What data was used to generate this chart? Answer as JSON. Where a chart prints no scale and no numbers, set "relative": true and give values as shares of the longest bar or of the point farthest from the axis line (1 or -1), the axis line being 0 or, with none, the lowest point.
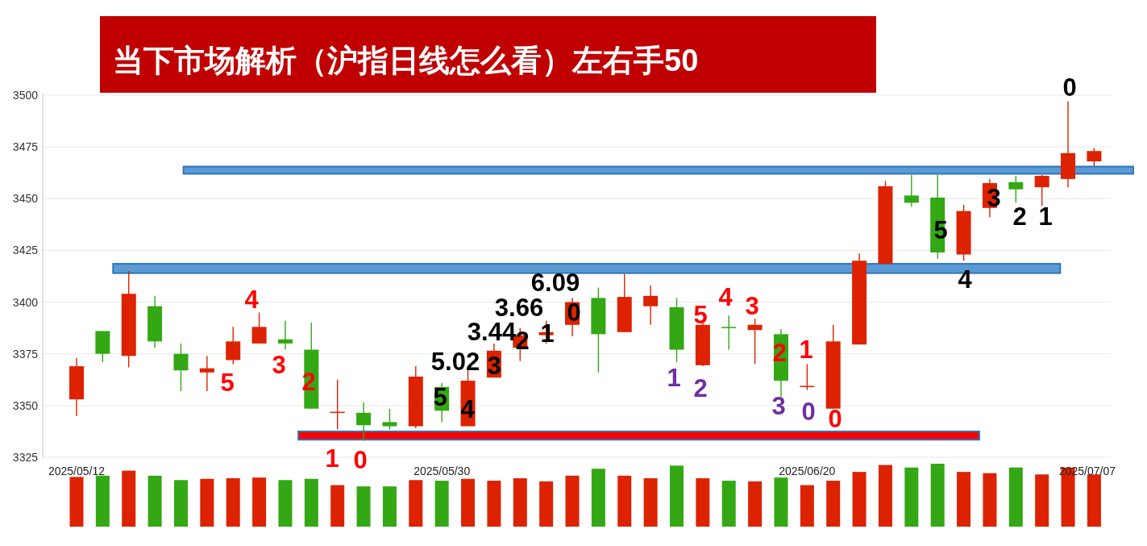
{
  "chart_data": [
    {
      "type": "candlestick",
      "title": "当下市场解析（沪指日线怎么看）左右手50",
      "categories": [
        "2025/05/12",
        null,
        null,
        null,
        null,
        null,
        null,
        null,
        null,
        null,
        null,
        null,
        null,
        null,
        "2025/05/30",
        null,
        null,
        null,
        null,
        null,
        null,
        null,
        null,
        null,
        null,
        null,
        null,
        null,
        "2025/06/20",
        null,
        null,
        null,
        null,
        null,
        null,
        null,
        null,
        null,
        null,
        "2025/07/07"
      ],
      "ohlc": [
        [
          3353,
          3373,
          3345,
          3369
        ],
        [
          3386,
          3386,
          3371,
          3375
        ],
        [
          3374,
          3415,
          3368.5,
          3404
        ],
        [
          3398,
          3403,
          3378,
          3381
        ],
        [
          3375,
          3380,
          3357,
          3367
        ],
        [
          3366,
          3374,
          3357,
          3368
        ],
        [
          3372,
          3388,
          3370,
          3381
        ],
        [
          3380,
          3395,
          3380,
          3388
        ],
        [
          3382,
          3391,
          3377,
          3380
        ],
        [
          3377,
          3390,
          3348.5,
          3348.5
        ],
        [
          3346.5,
          3362.5,
          3338.5,
          3347
        ],
        [
          3346.5,
          3351.5,
          3333,
          3340.5
        ],
        [
          3342,
          3348.5,
          3338.5,
          3340
        ],
        [
          3340,
          3369,
          3339,
          3364
        ],
        [
          3359,
          3361,
          3342,
          3347.5
        ],
        [
          3340,
          3367,
          3340,
          3362
        ],
        [
          3363.5,
          3380,
          3363.5,
          3376.5
        ],
        [
          3378,
          3387.5,
          3371.5,
          3384
        ],
        [
          3384,
          3391,
          3380,
          3385.5
        ],
        [
          3389,
          3402,
          3383.5,
          3400
        ],
        [
          3402,
          3407,
          3366,
          3384.5
        ],
        [
          3385.5,
          3413.5,
          3385.5,
          3402.5
        ],
        [
          3398,
          3408,
          3389,
          3403
        ],
        [
          3397.5,
          3402,
          3371,
          3377
        ],
        [
          3369.5,
          3390,
          3369,
          3389
        ],
        [
          3388,
          3393.5,
          3377,
          3387.5
        ],
        [
          3386.5,
          3392,
          3370,
          3389
        ],
        [
          3384.5,
          3387,
          3354,
          3362
        ],
        [
          3359,
          3370,
          3357.5,
          3359.5
        ],
        [
          3348.5,
          3389,
          3348.5,
          3381
        ],
        [
          3379.5,
          3423.5,
          3379.5,
          3420
        ],
        [
          3418.5,
          3458.5,
          3418.5,
          3456
        ],
        [
          3451.5,
          3461.5,
          3446,
          3448
        ],
        [
          3450.5,
          3461.5,
          3421,
          3424
        ],
        [
          3423,
          3447,
          3420,
          3444
        ],
        [
          3445.5,
          3459.5,
          3441,
          3457.5
        ],
        [
          3458,
          3461,
          3448,
          3454.5
        ],
        [
          3455.5,
          3461.5,
          3446.5,
          3461
        ],
        [
          3459.5,
          3497,
          3455.5,
          3472
        ],
        [
          3468,
          3474.5,
          3465.5,
          3473
        ]
      ],
      "colors": [
        "#dd2200",
        "#33a814",
        "#dd2200",
        "#33a814",
        "#33a814",
        "#dd2200",
        "#dd2200",
        "#dd2200",
        "#33a814",
        "#33a814",
        "#dd2200",
        "#33a814",
        "#33a814",
        "#dd2200",
        "#33a814",
        "#dd2200",
        "#dd2200",
        "#dd2200",
        "#dd2200",
        "#dd2200",
        "#33a814",
        "#dd2200",
        "#dd2200",
        "#33a814",
        "#dd2200",
        "#33a814",
        "#dd2200",
        "#33a814",
        "#dd2200",
        "#dd2200",
        "#dd2200",
        "#dd2200",
        "#33a814",
        "#33a814",
        "#dd2200",
        "#dd2200",
        "#33a814",
        "#dd2200",
        "#dd2200",
        "#dd2200"
      ],
      "ylim": [
        3325,
        3500
      ],
      "yticks": [
        3325,
        3350,
        3375,
        3400,
        3425,
        3450,
        3475,
        3500
      ],
      "grid": "y",
      "bands": [
        {
          "axis": "y",
          "from": 3462,
          "to": 3465.5,
          "color": "#5b9bd5"
        },
        {
          "axis": "y",
          "from": 3414,
          "to": 3418.5,
          "color": "#5b9bd5"
        },
        {
          "axis": "y",
          "from": 3333.5,
          "to": 3337.5,
          "color": "#ff0000"
        }
      ],
      "annotations": [
        "4",
        "3",
        "5",
        "2",
        "1",
        "0",
        "5",
        "4",
        "5.02",
        "3",
        "3.44",
        "2",
        "3.66",
        "1",
        "6.09",
        "0",
        "1",
        "2",
        "5",
        "4",
        "3",
        "2",
        "3",
        "1",
        "0",
        "0",
        "5",
        "4",
        "3",
        "2",
        "1",
        "0"
      ]
    },
    {
      "type": "bar",
      "relative": true,
      "categories": [
        null,
        null,
        null,
        null,
        null,
        null,
        null,
        null,
        null,
        null,
        null,
        null,
        null,
        null,
        null,
        null,
        null,
        null,
        null,
        null,
        null,
        null,
        null,
        null,
        null,
        null,
        null,
        null,
        null,
        null,
        null,
        null,
        null,
        null,
        null,
        null,
        null,
        null,
        null,
        null
      ],
      "values": [
        0.79,
        0.81,
        0.89,
        0.81,
        0.74,
        0.76,
        0.77,
        0.78,
        0.74,
        0.76,
        0.66,
        0.64,
        0.64,
        0.74,
        0.73,
        0.76,
        0.73,
        0.77,
        0.72,
        0.81,
        0.92,
        0.81,
        0.77,
        0.97,
        0.77,
        0.73,
        0.72,
        0.78,
        0.66,
        0.73,
        0.87,
        0.98,
        0.94,
        1,
        0.87,
        0.85,
        0.94,
        0.83,
        0.94,
        0.83
      ],
      "colors": [
        "#dd2200",
        "#33a814",
        "#dd2200",
        "#33a814",
        "#33a814",
        "#dd2200",
        "#dd2200",
        "#dd2200",
        "#33a814",
        "#33a814",
        "#dd2200",
        "#33a814",
        "#33a814",
        "#dd2200",
        "#33a814",
        "#dd2200",
        "#dd2200",
        "#dd2200",
        "#dd2200",
        "#dd2200",
        "#33a814",
        "#dd2200",
        "#dd2200",
        "#33a814",
        "#dd2200",
        "#33a814",
        "#dd2200",
        "#33a814",
        "#dd2200",
        "#dd2200",
        "#dd2200",
        "#dd2200",
        "#33a814",
        "#33a814",
        "#dd2200",
        "#dd2200",
        "#33a814",
        "#dd2200",
        "#dd2200",
        "#dd2200"
      ]
    }
  ]
}
